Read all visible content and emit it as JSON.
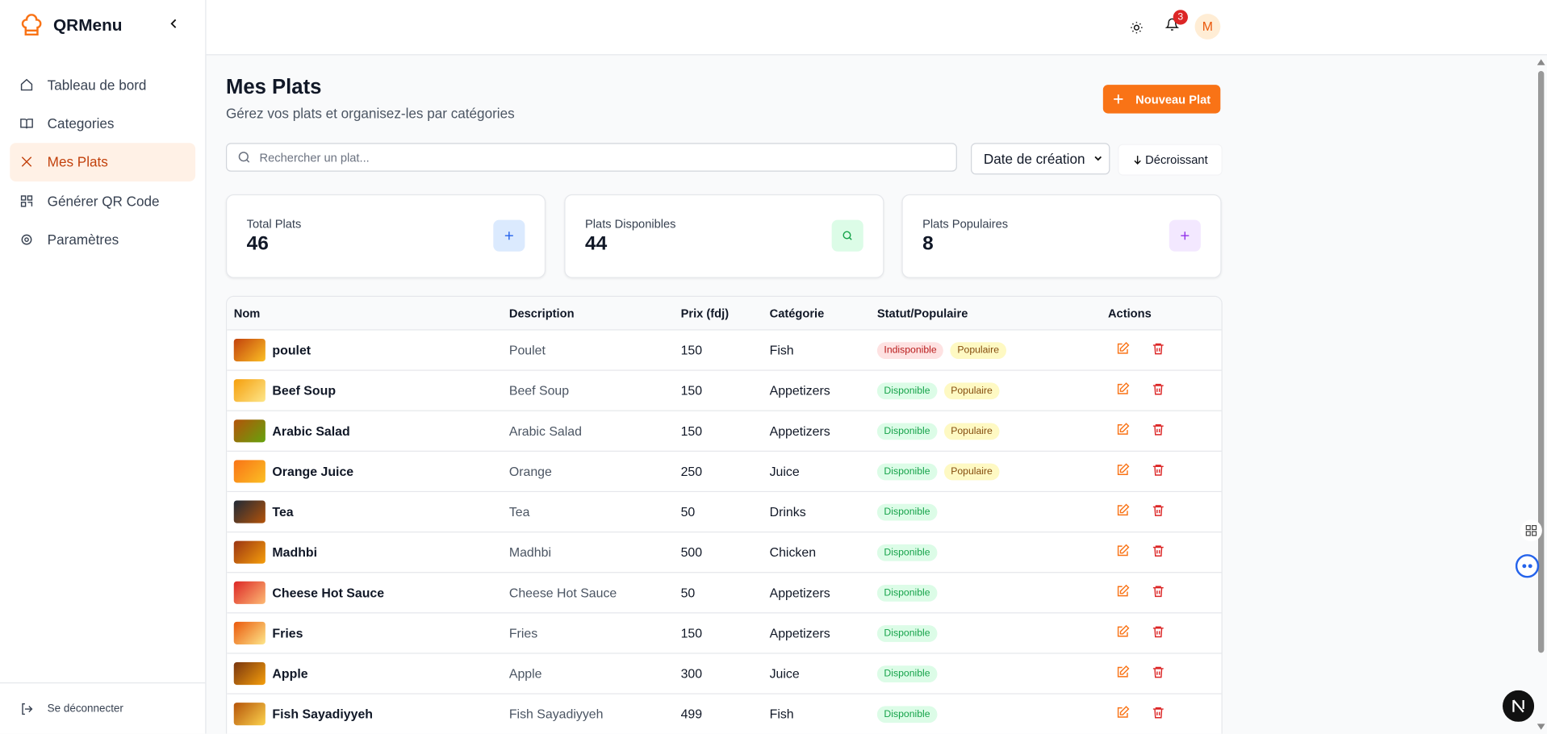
{
  "sidebar": {
    "brand": "QRMenu",
    "nav": [
      "Tableau de bord",
      "Categories",
      "Mes Plats",
      "Générer QR Code",
      "Paramètres"
    ],
    "active": 2,
    "logout": "Se déconnecter"
  },
  "header": {
    "notifications": 3,
    "avatar": "M"
  },
  "page": {
    "title": "Mes Plats",
    "subtitle": "Gérez vos plats et organisez-les par catégories",
    "new_button": "Nouveau Plat",
    "search_placeholder": "Rechercher un plat...",
    "sort": "Date de création",
    "order": "Décroissant"
  },
  "stats": [
    {
      "label": "Total Plats",
      "value": 46,
      "color": "blue"
    },
    {
      "label": "Plats Disponibles",
      "value": 44,
      "color": "green"
    },
    {
      "label": "Plats Populaires",
      "value": 8,
      "color": "purple"
    }
  ],
  "table": {
    "headers": [
      "Nom",
      "Description",
      "Prix (fdj)",
      "Catégorie",
      "Statut/Populaire",
      "Actions"
    ],
    "rows": [
      {
        "name": "poulet",
        "description": "Poulet",
        "price": 150,
        "category": "Fish",
        "badges": [
          {
            "text": "Indisponible",
            "color": "red"
          },
          {
            "text": "Populaire",
            "color": "yellow"
          }
        ]
      },
      {
        "name": "Beef Soup",
        "description": "Beef Soup",
        "price": 150,
        "category": "Appetizers",
        "badges": [
          {
            "text": "Disponible",
            "color": "green"
          },
          {
            "text": "Populaire",
            "color": "yellow"
          }
        ]
      },
      {
        "name": "Arabic Salad",
        "description": "Arabic Salad",
        "price": 150,
        "category": "Appetizers",
        "badges": [
          {
            "text": "Disponible",
            "color": "green"
          },
          {
            "text": "Populaire",
            "color": "yellow"
          }
        ]
      },
      {
        "name": "Orange Juice",
        "description": "Orange",
        "price": 250,
        "category": "Juice",
        "badges": [
          {
            "text": "Disponible",
            "color": "green"
          },
          {
            "text": "Populaire",
            "color": "yellow"
          }
        ]
      },
      {
        "name": "Tea",
        "description": "Tea",
        "price": 50,
        "category": "Drinks",
        "badges": [
          {
            "text": "Disponible",
            "color": "green"
          }
        ]
      },
      {
        "name": "Madhbi",
        "description": "Madhbi",
        "price": 500,
        "category": "Chicken",
        "badges": [
          {
            "text": "Disponible",
            "color": "green"
          }
        ]
      },
      {
        "name": "Cheese Hot Sauce",
        "description": "Cheese Hot Sauce",
        "price": 50,
        "category": "Appetizers",
        "badges": [
          {
            "text": "Disponible",
            "color": "green"
          }
        ]
      },
      {
        "name": "Fries",
        "description": "Fries",
        "price": 150,
        "category": "Appetizers",
        "badges": [
          {
            "text": "Disponible",
            "color": "green"
          }
        ]
      },
      {
        "name": "Apple",
        "description": "Apple",
        "price": 300,
        "category": "Juice",
        "badges": [
          {
            "text": "Disponible",
            "color": "green"
          }
        ]
      },
      {
        "name": "Fish Sayadiyyeh",
        "description": "Fish Sayadiyyeh",
        "price": 499,
        "category": "Fish",
        "badges": [
          {
            "text": "Disponible",
            "color": "green"
          }
        ]
      }
    ]
  }
}
